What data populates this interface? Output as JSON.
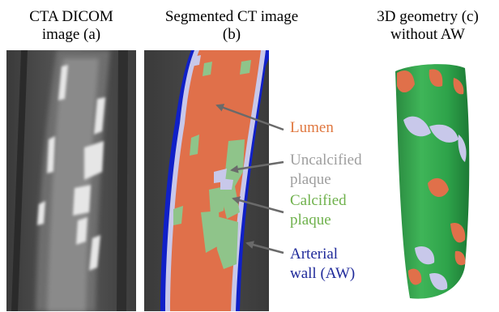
{
  "panels": [
    {
      "line1": "CTA DICOM",
      "line2": "image (a)"
    },
    {
      "line1": "Segmented CT image",
      "line2": "(b)"
    },
    {
      "line1": "3D geometry (c)",
      "line2": "without AW"
    }
  ],
  "legend": [
    {
      "line1": "Lumen",
      "line2": "",
      "color": "#e07840"
    },
    {
      "line1": "Uncalcified",
      "line2": "plaque",
      "color": "#9e9e9e"
    },
    {
      "line1": "Calcified",
      "line2": "plaque",
      "color": "#6fb14c"
    },
    {
      "line1": "Arterial",
      "line2": "wall (AW)",
      "color": "#1f2a9a"
    }
  ],
  "colors": {
    "lumen": "#e0704a",
    "uncalcified": "#c8c8ea",
    "calcified": "#8fc48a",
    "wall": "#1020c8",
    "geometry_green": "#2ea34a",
    "arrow": "#6a6a6a"
  }
}
